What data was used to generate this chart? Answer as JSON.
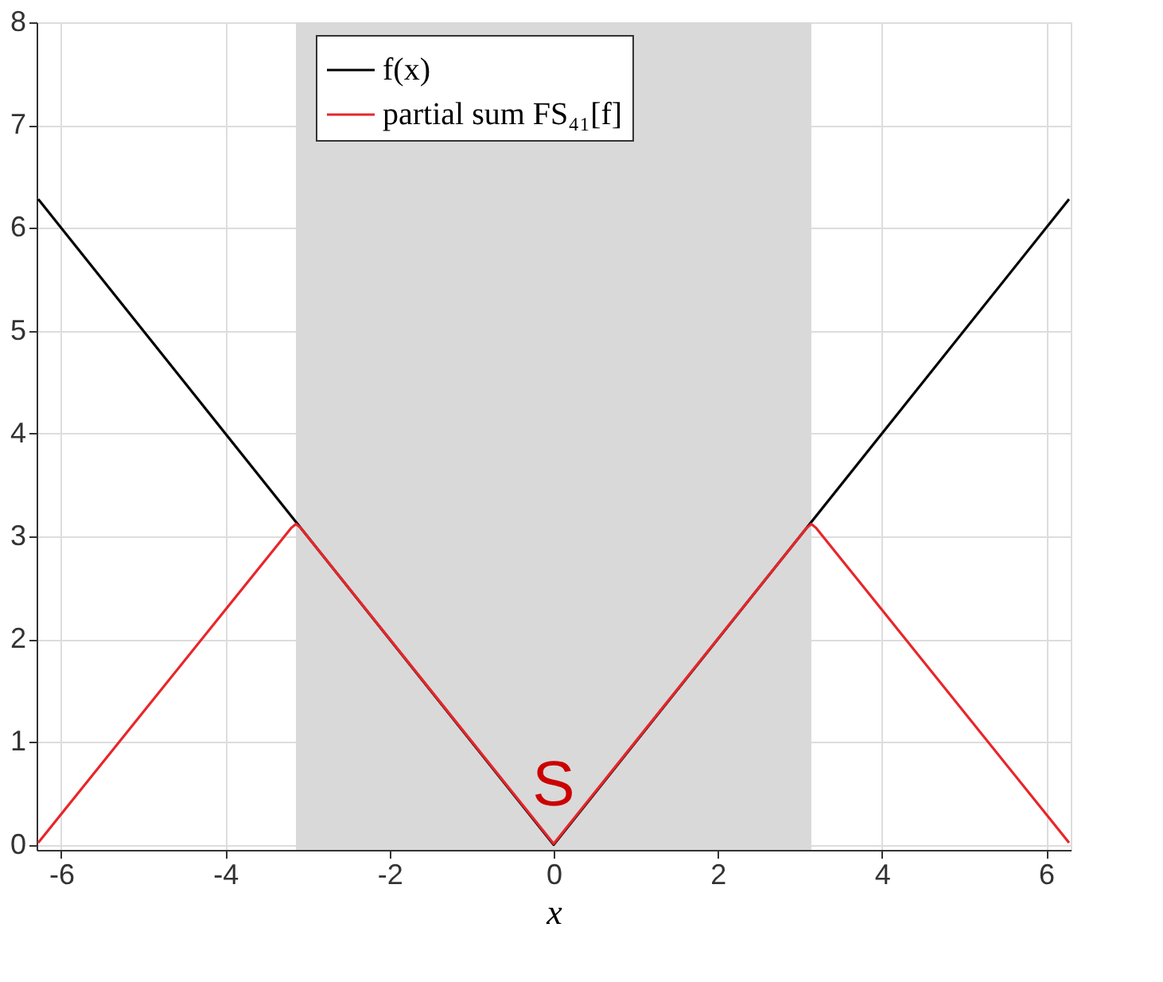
{
  "chart_data": {
    "type": "line",
    "xlabel": "x",
    "xlim": [
      -6.3,
      6.3
    ],
    "xticks": [
      -6,
      -4,
      -2,
      0,
      2,
      4,
      6
    ],
    "ylim": [
      -0.05,
      8
    ],
    "yticks": [
      0,
      1,
      2,
      3,
      4,
      5,
      6,
      7,
      8
    ],
    "series": [
      {
        "name": "f(x)",
        "color": "#000000",
        "x": [
          -6.28,
          0,
          6.28
        ],
        "values": [
          6.28,
          0,
          6.28
        ]
      },
      {
        "name": "partial sum FS₄₁[f]",
        "color": "#e8262a",
        "x": [
          -6.28,
          -3.2,
          -3.14,
          -3.08,
          0,
          3.08,
          3.14,
          3.2,
          6.28
        ],
        "values": [
          0.02,
          3.08,
          3.12,
          3.08,
          0.01,
          3.08,
          3.12,
          3.08,
          0.02
        ]
      }
    ],
    "bands": [
      {
        "axis": "x",
        "from": -3.14,
        "to": 3.14,
        "color": "#d9d9d9"
      }
    ],
    "annotations": [
      "S"
    ],
    "grid": true,
    "legend": "top",
    "line_style": "solid",
    "marker": "none"
  }
}
